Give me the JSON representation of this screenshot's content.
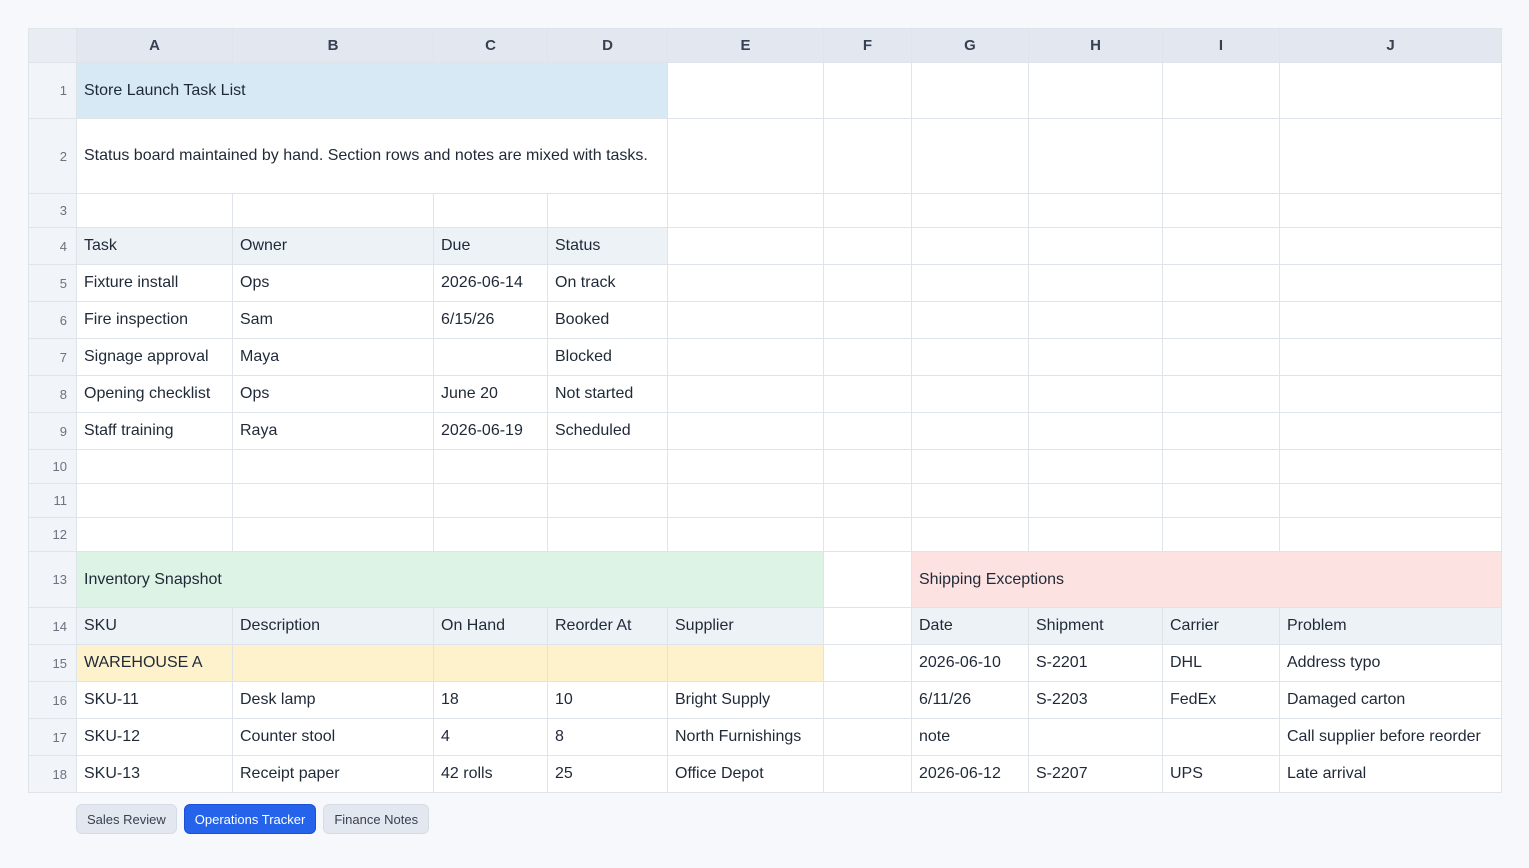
{
  "columns": [
    "A",
    "B",
    "C",
    "D",
    "E",
    "F",
    "G",
    "H",
    "I",
    "J"
  ],
  "rows": [
    "1",
    "2",
    "3",
    "4",
    "5",
    "6",
    "7",
    "8",
    "9",
    "10",
    "11",
    "12",
    "13",
    "14",
    "15",
    "16",
    "17",
    "18"
  ],
  "task_list": {
    "title": "Store Launch Task List",
    "note": "Status board maintained by hand. Section rows and notes are mixed with tasks.",
    "headers": [
      "Task",
      "Owner",
      "Due",
      "Status"
    ],
    "items": [
      [
        "Fixture install",
        "Ops",
        "2026-06-14",
        "On track"
      ],
      [
        "Fire inspection",
        "Sam",
        "6/15/26",
        "Booked"
      ],
      [
        "Signage approval",
        "Maya",
        "",
        "Blocked"
      ],
      [
        "Opening checklist",
        "Ops",
        "June 20",
        "Not started"
      ],
      [
        "Staff training",
        "Raya",
        "2026-06-19",
        "Scheduled"
      ]
    ]
  },
  "inventory": {
    "title": "Inventory Snapshot",
    "headers": [
      "SKU",
      "Description",
      "On Hand",
      "Reorder At",
      "Supplier"
    ],
    "section": "WAREHOUSE A",
    "items": [
      [
        "SKU-11",
        "Desk lamp",
        "18",
        "10",
        "Bright Supply"
      ],
      [
        "SKU-12",
        "Counter stool",
        "4",
        "8",
        "North Furnishings"
      ],
      [
        "SKU-13",
        "Receipt paper",
        "42 rolls",
        "25",
        "Office Depot"
      ]
    ]
  },
  "shipping": {
    "title": "Shipping Exceptions",
    "headers": [
      "Date",
      "Shipment",
      "Carrier",
      "Problem"
    ],
    "items": [
      [
        "2026-06-10",
        "S-2201",
        "DHL",
        "Address typo"
      ],
      [
        "6/11/26",
        "S-2203",
        "FedEx",
        "Damaged carton"
      ],
      [
        "note",
        "",
        "",
        "Call supplier before reorder"
      ],
      [
        "2026-06-12",
        "S-2207",
        "UPS",
        "Late arrival"
      ]
    ]
  },
  "tabs": [
    {
      "label": "Sales Review",
      "active": false
    },
    {
      "label": "Operations Tracker",
      "active": true
    },
    {
      "label": "Finance Notes",
      "active": false
    }
  ]
}
